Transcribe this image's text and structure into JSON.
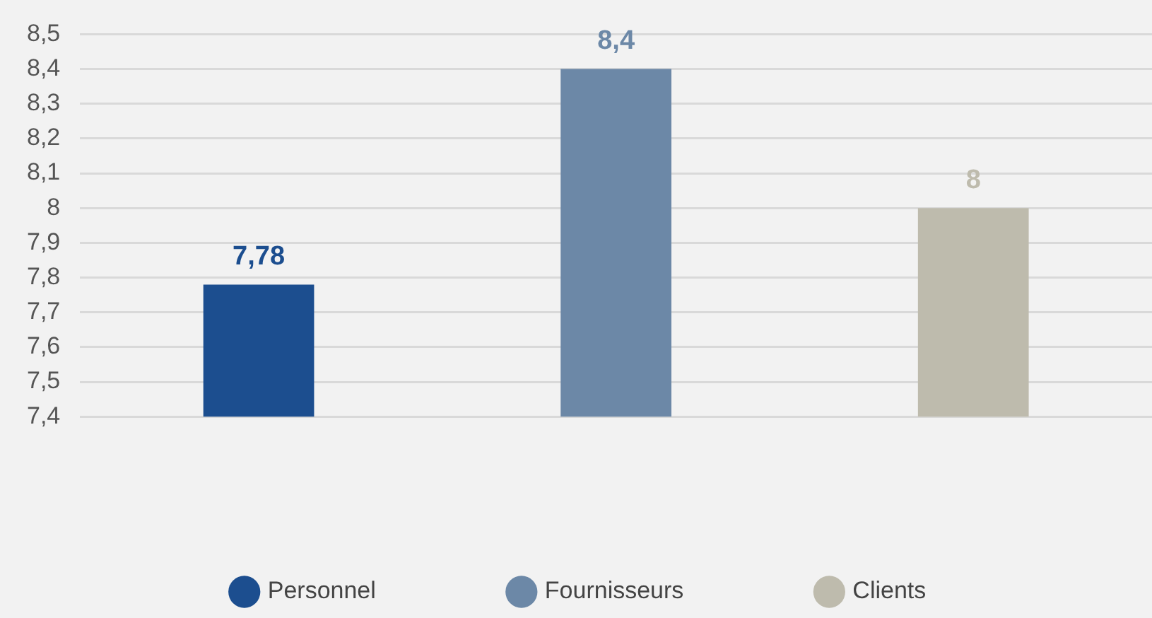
{
  "chart_data": {
    "type": "bar",
    "categories": [
      null,
      null,
      null
    ],
    "series": [
      {
        "name": "Personnel",
        "color": "#1c4e8f",
        "values": [
          7.78,
          null,
          null
        ],
        "value_labels": [
          "7,78",
          null,
          null
        ]
      },
      {
        "name": "Fournisseurs",
        "color": "#6c88a7",
        "values": [
          null,
          8.4,
          null
        ],
        "value_labels": [
          null,
          "8,4",
          null
        ]
      },
      {
        "name": "Clients",
        "color": "#bebbad",
        "values": [
          null,
          null,
          8
        ],
        "value_labels": [
          null,
          null,
          "8"
        ]
      }
    ],
    "ylim": [
      7.4,
      8.5
    ],
    "yticks": [
      {
        "value": 7.4,
        "label": "7,4"
      },
      {
        "value": 7.5,
        "label": "7,5"
      },
      {
        "value": 7.6,
        "label": "7,6"
      },
      {
        "value": 7.7,
        "label": "7,7"
      },
      {
        "value": 7.8,
        "label": "7,8"
      },
      {
        "value": 7.9,
        "label": "7,9"
      },
      8,
      {
        "value": 8.1,
        "label": "8,1"
      },
      {
        "value": 8.2,
        "label": "8,2"
      },
      {
        "value": 8.3,
        "label": "8,3"
      },
      {
        "value": 8.4,
        "label": "8,4"
      },
      {
        "value": 8.5,
        "label": "8,5"
      }
    ],
    "grid": "y",
    "legend": "bottom"
  }
}
